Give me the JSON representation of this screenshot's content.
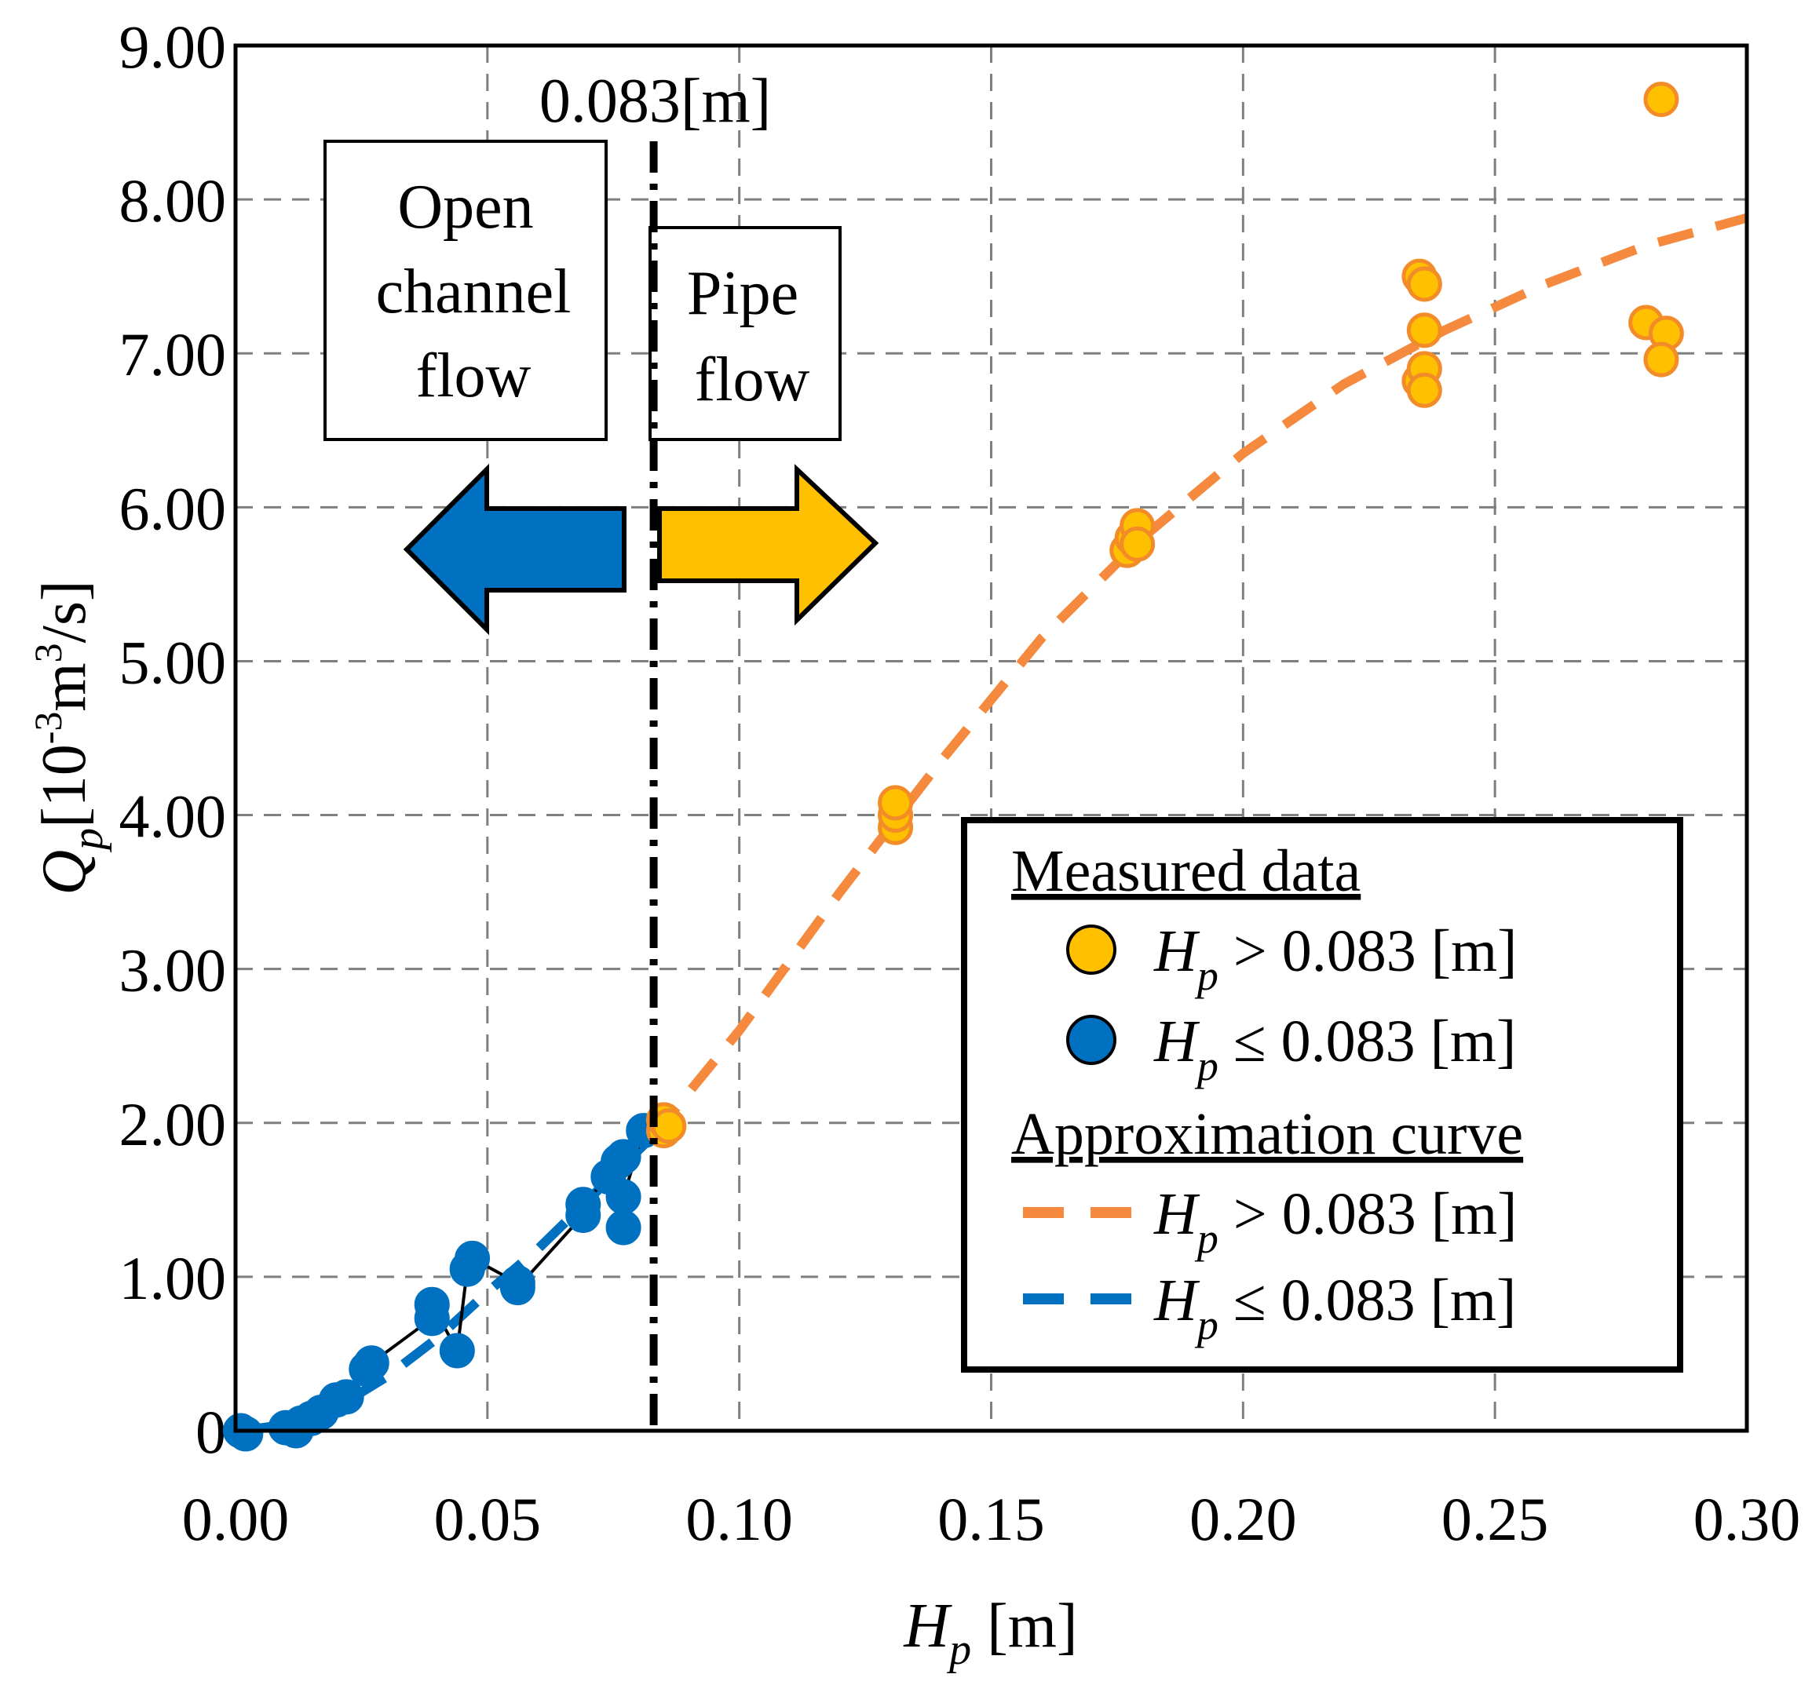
{
  "chart_data": {
    "type": "scatter",
    "x_axis": {
      "label_main": "H",
      "label_sub": "p",
      "label_unit": " [m]",
      "range": [
        0.0,
        0.3
      ],
      "ticks": [
        0.0,
        0.05,
        0.1,
        0.15,
        0.2,
        0.25,
        0.3
      ],
      "tick_labels": [
        "0.00",
        "0.05",
        "0.10",
        "0.15",
        "0.20",
        "0.25",
        "0.30"
      ]
    },
    "y_axis": {
      "label_main": "Q",
      "label_sub": "p",
      "label_unit_pre": "[10",
      "label_unit_exp1": "-3",
      "label_unit_mid": "m",
      "label_unit_exp2": "3",
      "label_unit_post": "/s]",
      "range": [
        0.0,
        9.0
      ],
      "ticks": [
        0,
        1,
        2,
        3,
        4,
        5,
        6,
        7,
        8,
        9
      ],
      "tick_labels": [
        "0",
        "1.00",
        "2.00",
        "3.00",
        "4.00",
        "5.00",
        "6.00",
        "7.00",
        "8.00",
        "9.00"
      ]
    },
    "grid": true,
    "threshold": {
      "x": 0.083,
      "label": "0.083[m]"
    },
    "annotations": {
      "open_channel": [
        "Open",
        "channel",
        "flow"
      ],
      "pipe": [
        "Pipe",
        "flow"
      ]
    },
    "series": [
      {
        "name": "Measured data H_p > 0.083 [m]",
        "kind": "points",
        "color": "#FFC000",
        "edge": "#F28C28",
        "points": [
          [
            0.085,
            1.95
          ],
          [
            0.085,
            2.02
          ],
          [
            0.086,
            1.98
          ],
          [
            0.131,
            3.92
          ],
          [
            0.131,
            4.0
          ],
          [
            0.131,
            4.08
          ],
          [
            0.177,
            5.72
          ],
          [
            0.178,
            5.8
          ],
          [
            0.179,
            5.88
          ],
          [
            0.179,
            5.76
          ],
          [
            0.235,
            7.5
          ],
          [
            0.236,
            7.45
          ],
          [
            0.236,
            7.15
          ],
          [
            0.235,
            6.82
          ],
          [
            0.236,
            6.9
          ],
          [
            0.236,
            6.76
          ],
          [
            0.28,
            7.2
          ],
          [
            0.283,
            8.65
          ],
          [
            0.284,
            7.13
          ],
          [
            0.283,
            6.96
          ]
        ]
      },
      {
        "name": "Measured data H_p ≤ 0.083 [m]",
        "kind": "points_line",
        "color": "#0070C0",
        "edge": "#0070C0",
        "points": [
          [
            0.001,
            0.0
          ],
          [
            0.002,
            -0.02
          ],
          [
            0.01,
            0.02
          ],
          [
            0.012,
            0.0
          ],
          [
            0.013,
            0.05
          ],
          [
            0.015,
            0.08
          ],
          [
            0.017,
            0.12
          ],
          [
            0.02,
            0.2
          ],
          [
            0.022,
            0.22
          ],
          [
            0.026,
            0.4
          ],
          [
            0.027,
            0.44
          ],
          [
            0.039,
            0.73
          ],
          [
            0.039,
            0.82
          ],
          [
            0.044,
            0.52
          ],
          [
            0.046,
            1.05
          ],
          [
            0.047,
            1.12
          ],
          [
            0.056,
            0.96
          ],
          [
            0.056,
            0.93
          ],
          [
            0.069,
            1.4
          ],
          [
            0.069,
            1.47
          ],
          [
            0.074,
            1.65
          ],
          [
            0.076,
            1.75
          ],
          [
            0.077,
            1.78
          ],
          [
            0.077,
            1.32
          ],
          [
            0.077,
            1.52
          ],
          [
            0.081,
            1.95
          ]
        ]
      },
      {
        "name": "Approximation curve H_p > 0.083 [m]",
        "kind": "dashed_curve",
        "color": "#F5893D",
        "points": [
          [
            0.083,
            1.92
          ],
          [
            0.1,
            2.6
          ],
          [
            0.12,
            3.5
          ],
          [
            0.14,
            4.35
          ],
          [
            0.16,
            5.15
          ],
          [
            0.18,
            5.8
          ],
          [
            0.2,
            6.35
          ],
          [
            0.22,
            6.8
          ],
          [
            0.24,
            7.15
          ],
          [
            0.26,
            7.45
          ],
          [
            0.28,
            7.7
          ],
          [
            0.3,
            7.88
          ]
        ]
      },
      {
        "name": "Approximation curve H_p ≤ 0.083 [m]",
        "kind": "dashed_curve",
        "color": "#0070C0",
        "points": [
          [
            0.001,
            0.0
          ],
          [
            0.01,
            0.04
          ],
          [
            0.02,
            0.15
          ],
          [
            0.03,
            0.35
          ],
          [
            0.04,
            0.6
          ],
          [
            0.05,
            0.9
          ],
          [
            0.06,
            1.18
          ],
          [
            0.07,
            1.5
          ],
          [
            0.083,
            1.92
          ]
        ]
      }
    ],
    "legend": {
      "position": "bottom-right",
      "measured_title": "Measured data",
      "approx_title": "Approximation curve",
      "entries": [
        {
          "base": "H",
          "sub": "p",
          "rest": " > 0.083 [m]",
          "color": "#FFC000",
          "edge": "#F28C28"
        },
        {
          "base": "H",
          "sub": "p",
          "rest": " ≤ 0.083 [m]",
          "color": "#0070C0",
          "edge": "#0070C0"
        },
        {
          "base": "H",
          "sub": "p",
          "rest": " > 0.083 [m]",
          "color": "#F5893D"
        },
        {
          "base": "H",
          "sub": "p",
          "rest": " ≤ 0.083 [m]",
          "color": "#0070C0"
        }
      ]
    },
    "arrow_colors": {
      "left": "#0070C0",
      "right": "#FFC000"
    }
  }
}
